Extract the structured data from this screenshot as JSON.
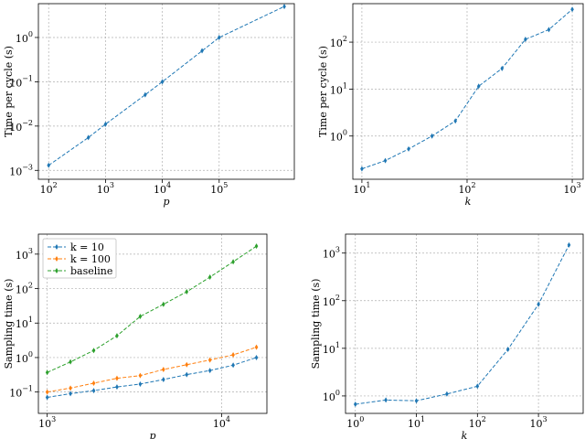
{
  "chart_data": [
    {
      "type": "line",
      "xlabel": "p",
      "ylabel": "Time per cycle (s)",
      "xscale": "log",
      "yscale": "log",
      "grid": true,
      "xlim": [
        66,
        2100000
      ],
      "ylim": [
        0.00063,
        5.8
      ],
      "xticks": [
        {
          "value": 100,
          "label": "10^2"
        },
        {
          "value": 1000,
          "label": "10^3"
        },
        {
          "value": 10000,
          "label": "10^4"
        },
        {
          "value": 100000,
          "label": "10^5"
        }
      ],
      "yticks": [
        {
          "value": 0.001,
          "label": "10^−3"
        },
        {
          "value": 0.01,
          "label": "10^−2"
        },
        {
          "value": 0.1,
          "label": "10^−1"
        },
        {
          "value": 1,
          "label": "10^0"
        }
      ],
      "x": [
        100,
        500,
        1000,
        5000,
        10000,
        50000,
        100000,
        1400000
      ],
      "series": [
        {
          "color": "#1f77b4",
          "values": [
            0.0013,
            0.0055,
            0.011,
            0.051,
            0.1,
            0.5,
            1.0,
            5.0
          ]
        }
      ]
    },
    {
      "type": "line",
      "xlabel": "k",
      "ylabel": "Time per cycle (s)",
      "xscale": "log",
      "yscale": "log",
      "grid": true,
      "xlim": [
        8.2,
        1270
      ],
      "ylim": [
        0.12,
        660
      ],
      "xticks": [
        {
          "value": 10,
          "label": "10^1"
        },
        {
          "value": 100,
          "label": "10^2"
        },
        {
          "value": 1000,
          "label": "10^3"
        }
      ],
      "yticks": [
        {
          "value": 1,
          "label": "10^0"
        },
        {
          "value": 10,
          "label": "10^1"
        },
        {
          "value": 100,
          "label": "10^2"
        }
      ],
      "x": [
        10,
        16.7,
        27.8,
        46.4,
        77.4,
        129,
        215,
        359,
        599,
        1000
      ],
      "series": [
        {
          "color": "#1f77b4",
          "values": [
            0.2,
            0.3,
            0.53,
            1.0,
            2.1,
            11.5,
            27.5,
            115,
            185,
            500
          ]
        }
      ]
    },
    {
      "type": "line",
      "xlabel": "p",
      "ylabel": "Sampling time (s)",
      "xscale": "log",
      "yscale": "log",
      "grid": true,
      "legend": "upper left",
      "xlim": [
        890,
        18200
      ],
      "ylim": [
        0.024,
        3800
      ],
      "xticks": [
        {
          "value": 1000,
          "label": "10^3"
        },
        {
          "value": 10000,
          "label": "10^4"
        }
      ],
      "yticks": [
        {
          "value": 0.1,
          "label": "10^−1"
        },
        {
          "value": 1,
          "label": "10^0"
        },
        {
          "value": 10,
          "label": "10^1"
        },
        {
          "value": 100,
          "label": "10^2"
        },
        {
          "value": 1000,
          "label": "10^3"
        }
      ],
      "x": [
        1000,
        1359,
        1848,
        2512,
        3415,
        4642,
        6310,
        8577,
        11659,
        15849
      ],
      "series": [
        {
          "name": "k = 10",
          "color": "#1f77b4",
          "values": [
            0.07,
            0.09,
            0.11,
            0.14,
            0.17,
            0.23,
            0.32,
            0.42,
            0.6,
            1.0
          ]
        },
        {
          "name": "k = 100",
          "color": "#ff7f0e",
          "values": [
            0.1,
            0.13,
            0.18,
            0.25,
            0.3,
            0.45,
            0.62,
            0.85,
            1.2,
            2.0
          ]
        },
        {
          "name": "baseline",
          "color": "#2ca02c",
          "values": [
            0.37,
            0.75,
            1.6,
            4.3,
            15.6,
            35,
            81,
            215,
            600,
            1700
          ]
        }
      ]
    },
    {
      "type": "line",
      "xlabel": "k",
      "ylabel": "Sampling time (s)",
      "xscale": "log",
      "yscale": "log",
      "grid": true,
      "xlim": [
        0.69,
        5400
      ],
      "ylim": [
        0.43,
        2500
      ],
      "xticks": [
        {
          "value": 1,
          "label": "10^0"
        },
        {
          "value": 10,
          "label": "10^1"
        },
        {
          "value": 100,
          "label": "10^2"
        },
        {
          "value": 1000,
          "label": "10^3"
        }
      ],
      "yticks": [
        {
          "value": 1,
          "label": "10^0"
        },
        {
          "value": 10,
          "label": "10^1"
        },
        {
          "value": 100,
          "label": "10^2"
        },
        {
          "value": 1000,
          "label": "10^3"
        }
      ],
      "x": [
        1,
        3.16,
        10,
        31.6,
        100,
        316,
        1000,
        3162
      ],
      "series": [
        {
          "color": "#1f77b4",
          "values": [
            0.67,
            0.82,
            0.79,
            1.1,
            1.6,
            9.5,
            84,
            1480
          ]
        }
      ]
    }
  ]
}
